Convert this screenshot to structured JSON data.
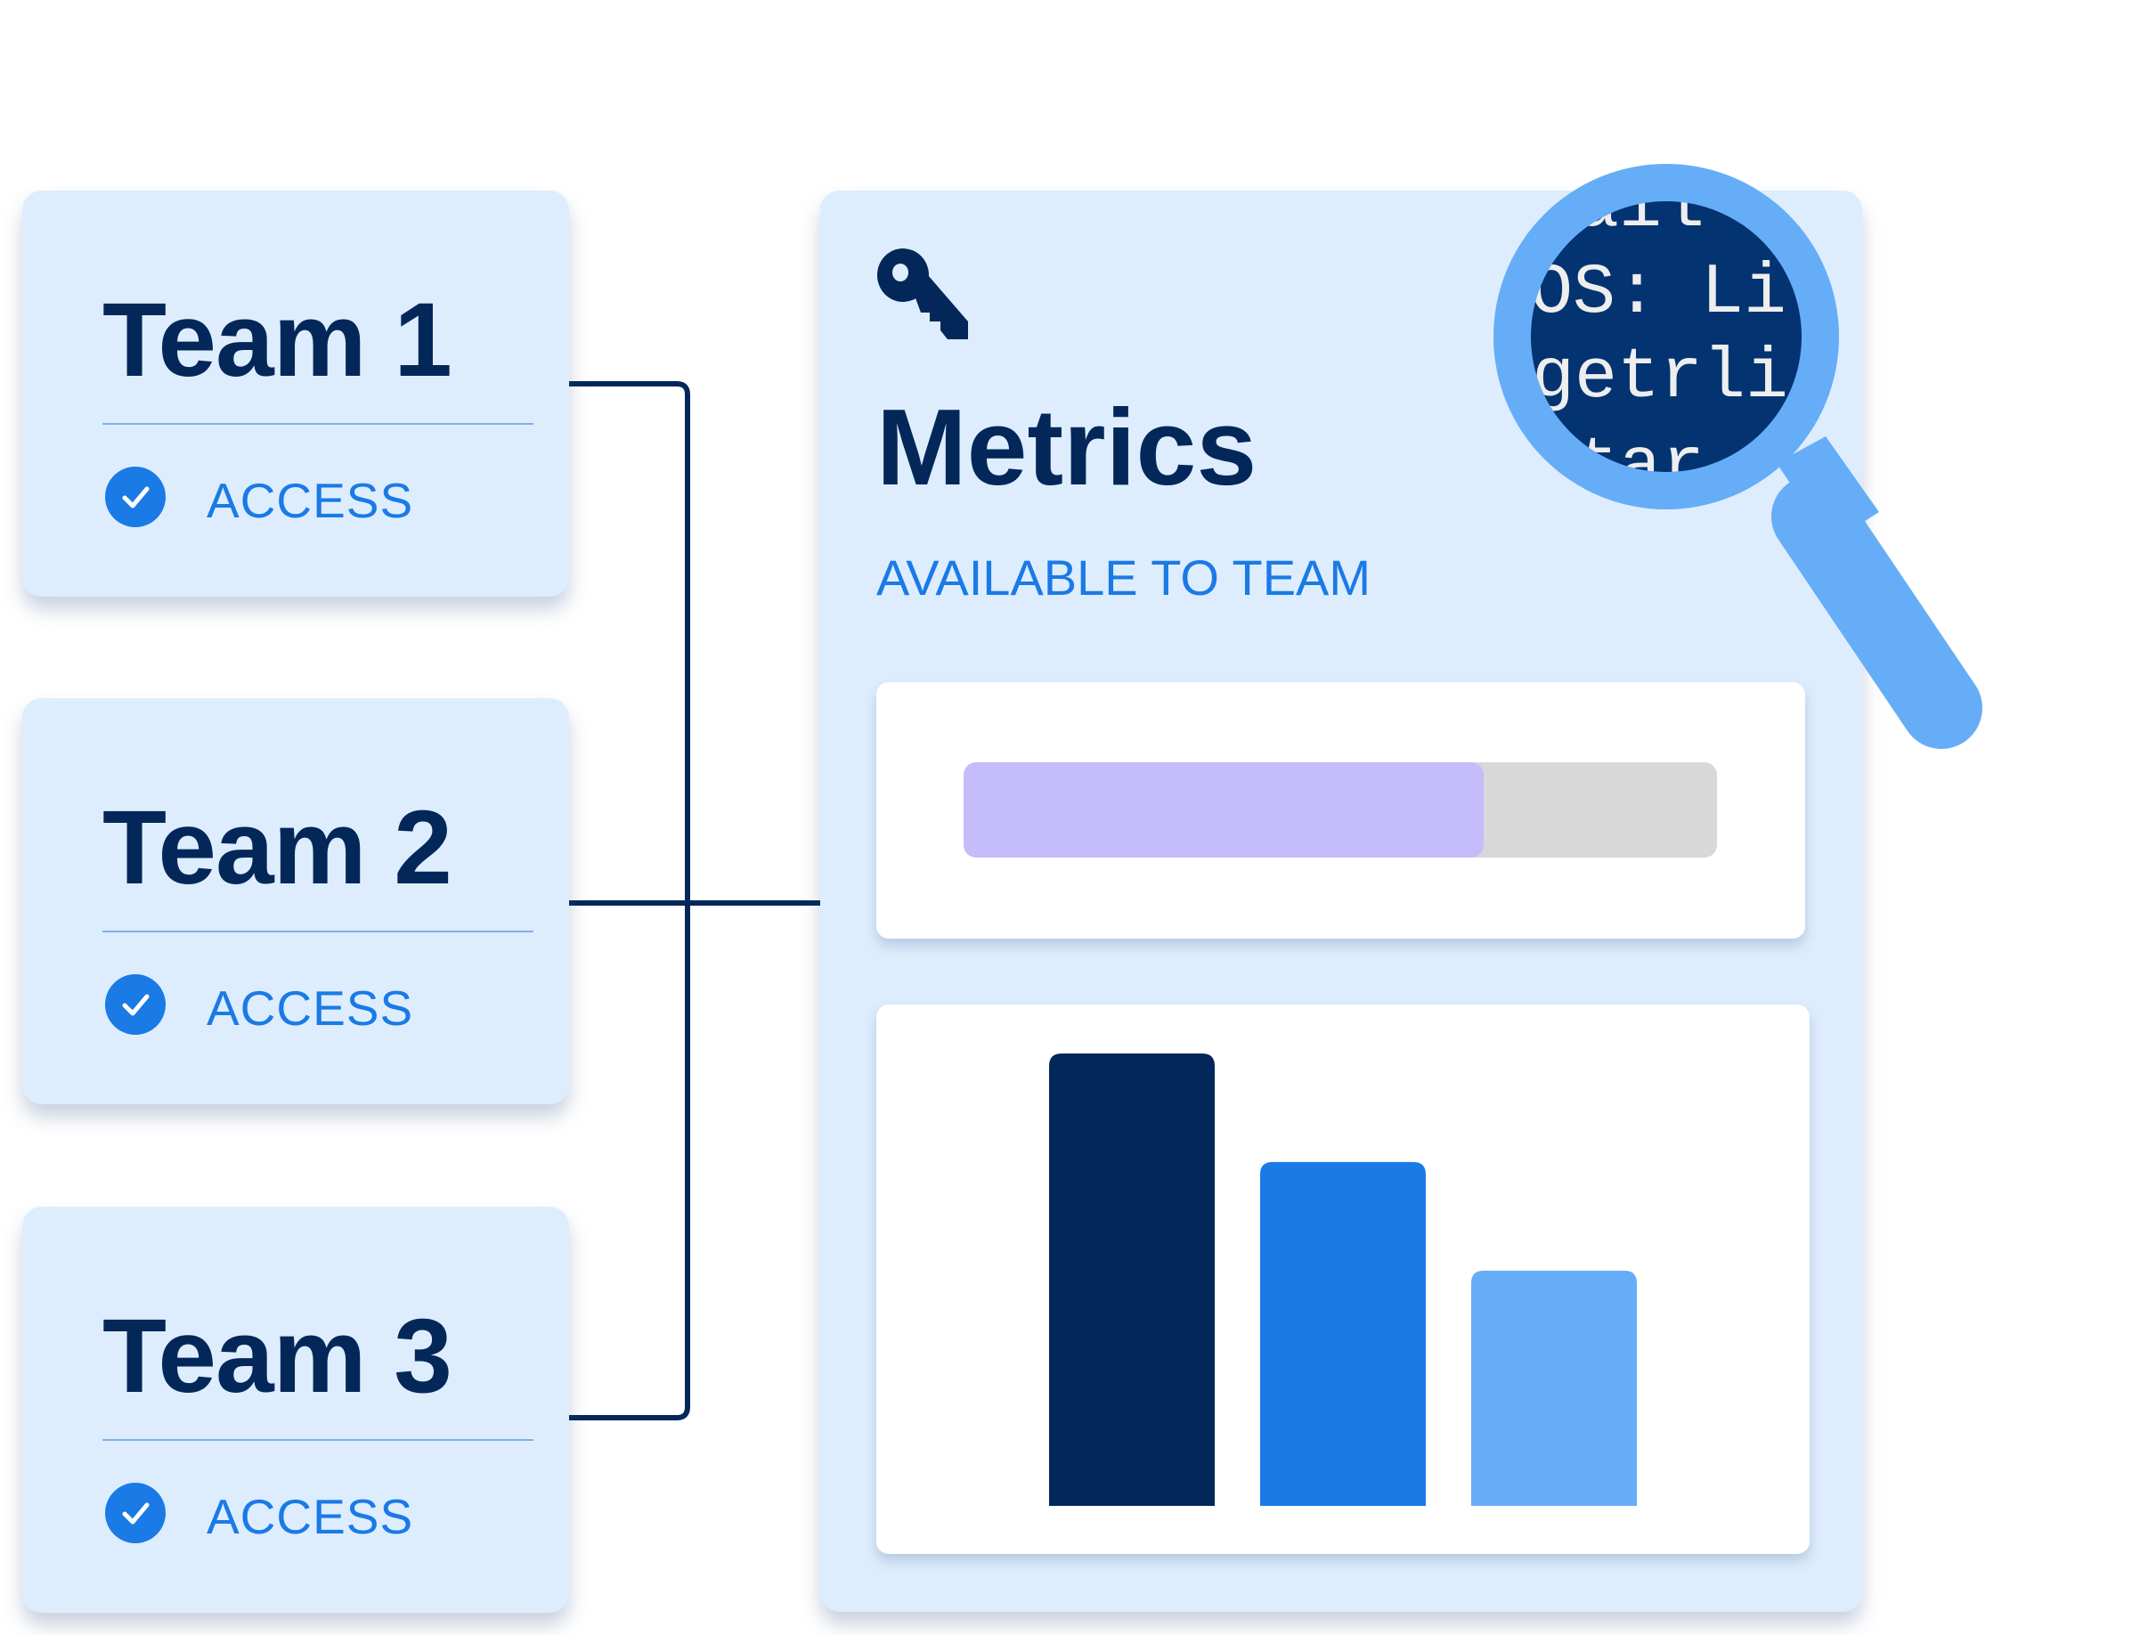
{
  "teams": [
    {
      "title": "Team 1",
      "status": "ACCESS"
    },
    {
      "title": "Team 2",
      "status": "ACCESS"
    },
    {
      "title": "Team 3",
      "status": "ACCESS"
    }
  ],
  "panel": {
    "icon": "key-icon",
    "title": "Metrics",
    "subtitle": "AVAILABLE TO TEAM",
    "progress_fraction": 0.69,
    "lens_text": [
      "ail",
      "OS: Li",
      "getrli",
      "tar"
    ]
  },
  "chart_data": {
    "type": "bar",
    "categories": [
      "",
      "",
      ""
    ],
    "values": [
      100,
      76,
      52
    ],
    "colors": [
      "#04275a",
      "#1a7ae6",
      "#66adf7"
    ],
    "ylim": [
      0,
      100
    ]
  },
  "colors": {
    "navy": "#04275a",
    "accent": "#1a7ae6",
    "light_blue": "#66adf7",
    "card_bg": "#deedfd",
    "progress_fill": "#c4bcfb",
    "progress_track": "#d8d8d8"
  }
}
